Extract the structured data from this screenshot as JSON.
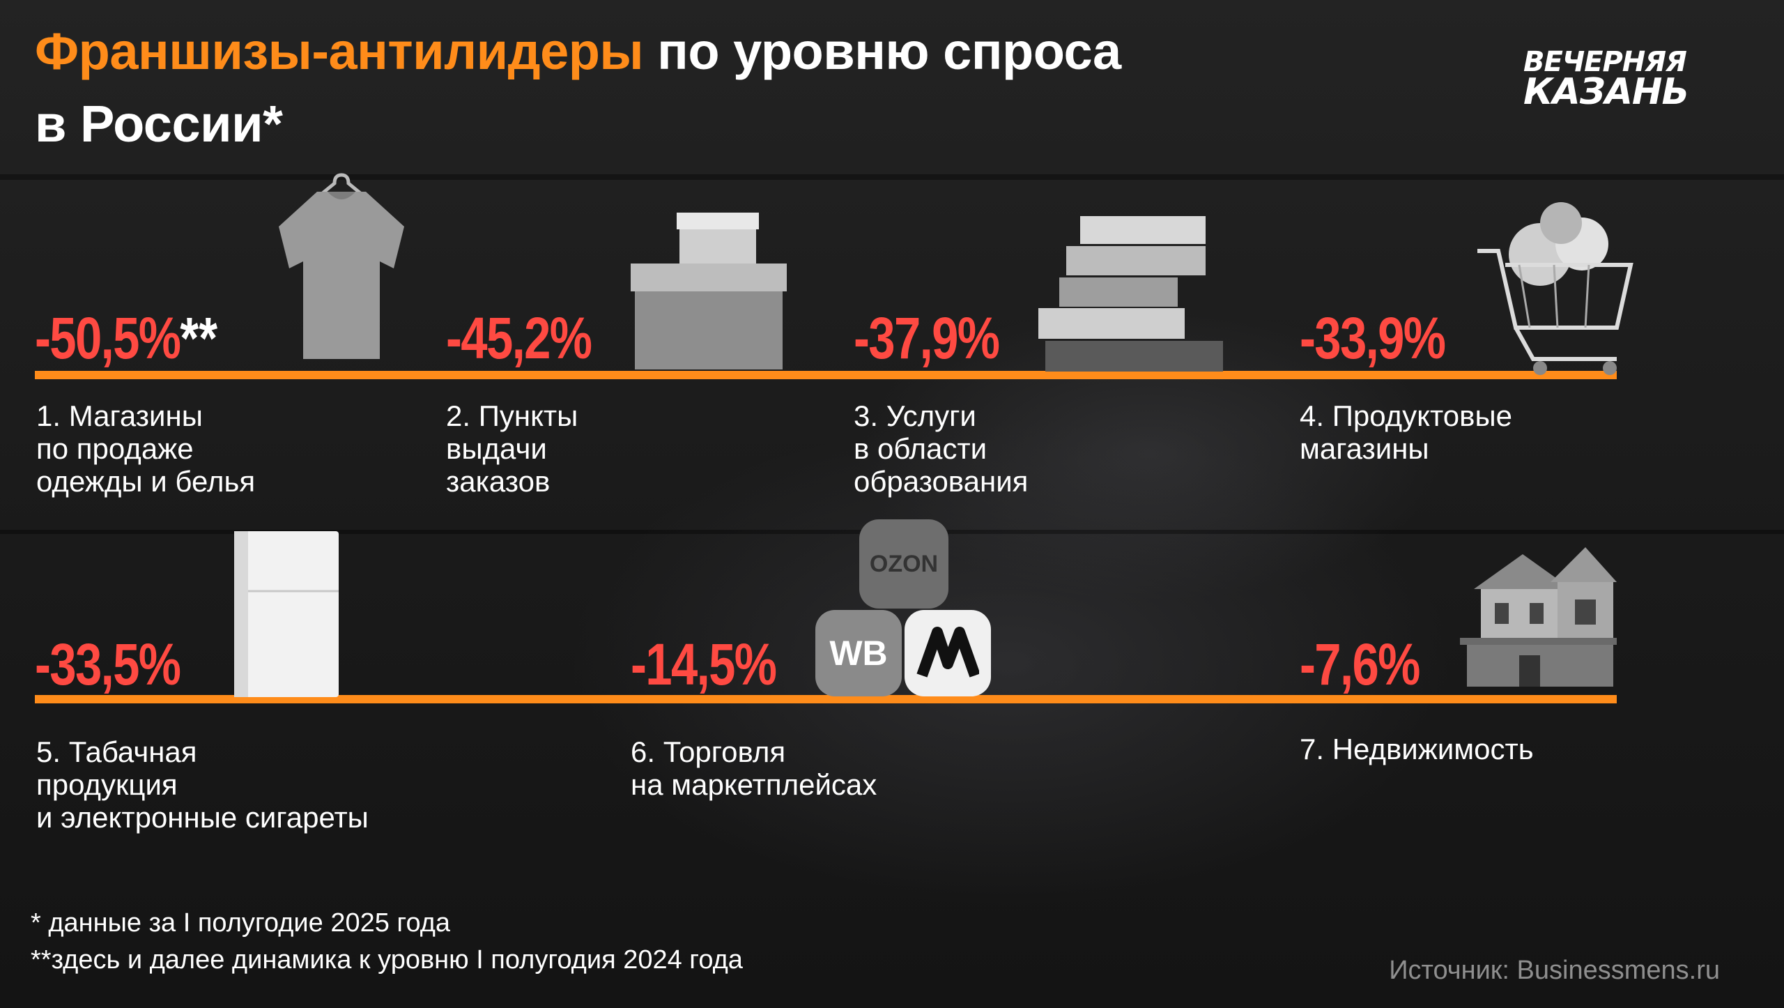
{
  "title": {
    "accent": "Франшизы-антилидеры",
    "rest_line1": " по уровню спроса",
    "line2": "в России*"
  },
  "logo": {
    "line1": "ВЕЧЕРНЯЯ",
    "line2": "КАЗАНЬ"
  },
  "colors": {
    "accent": "#ff8c1a",
    "value": "#ff4a42",
    "text": "#ffffff",
    "source": "#8f8f8f"
  },
  "chart_data": {
    "type": "table",
    "value_unit": "%",
    "items": [
      {
        "rank": 1,
        "value": "-50,5%",
        "value_suffix": "**",
        "label": "1. Магазины\nпо продаже\nодежды и белья",
        "icon": "tshirt-icon"
      },
      {
        "rank": 2,
        "value": "-45,2%",
        "value_suffix": "",
        "label": "2. Пункты\nвыдачи\nзаказов",
        "icon": "box-icon"
      },
      {
        "rank": 3,
        "value": "-37,9%",
        "value_suffix": "",
        "label": "3. Услуги\nв области\nобразования",
        "icon": "books-icon"
      },
      {
        "rank": 4,
        "value": "-33,9%",
        "value_suffix": "",
        "label": "4. Продуктовые\nмагазины",
        "icon": "shopping-cart-icon"
      },
      {
        "rank": 5,
        "value": "-33,5%",
        "value_suffix": "",
        "label": "5. Табачная\nпродукция\nи электронные сигареты",
        "icon": "cigarette-pack-icon"
      },
      {
        "rank": 6,
        "value": "-14,5%",
        "value_suffix": "",
        "label": "6. Торговля\nна маркетплейсах",
        "icon": "marketplace-logos-icon"
      },
      {
        "rank": 7,
        "value": "-7,6%",
        "value_suffix": "",
        "label": "7. Недвижимость",
        "icon": "house-icon"
      }
    ]
  },
  "marketplaces": {
    "ozon": "OZON",
    "wb": "WB"
  },
  "footnotes": {
    "one": "* данные за I полугодие 2025 года",
    "two": "**здесь и далее динамика к уровню I полугодия 2024 года"
  },
  "source": "Источник: Businessmens.ru"
}
